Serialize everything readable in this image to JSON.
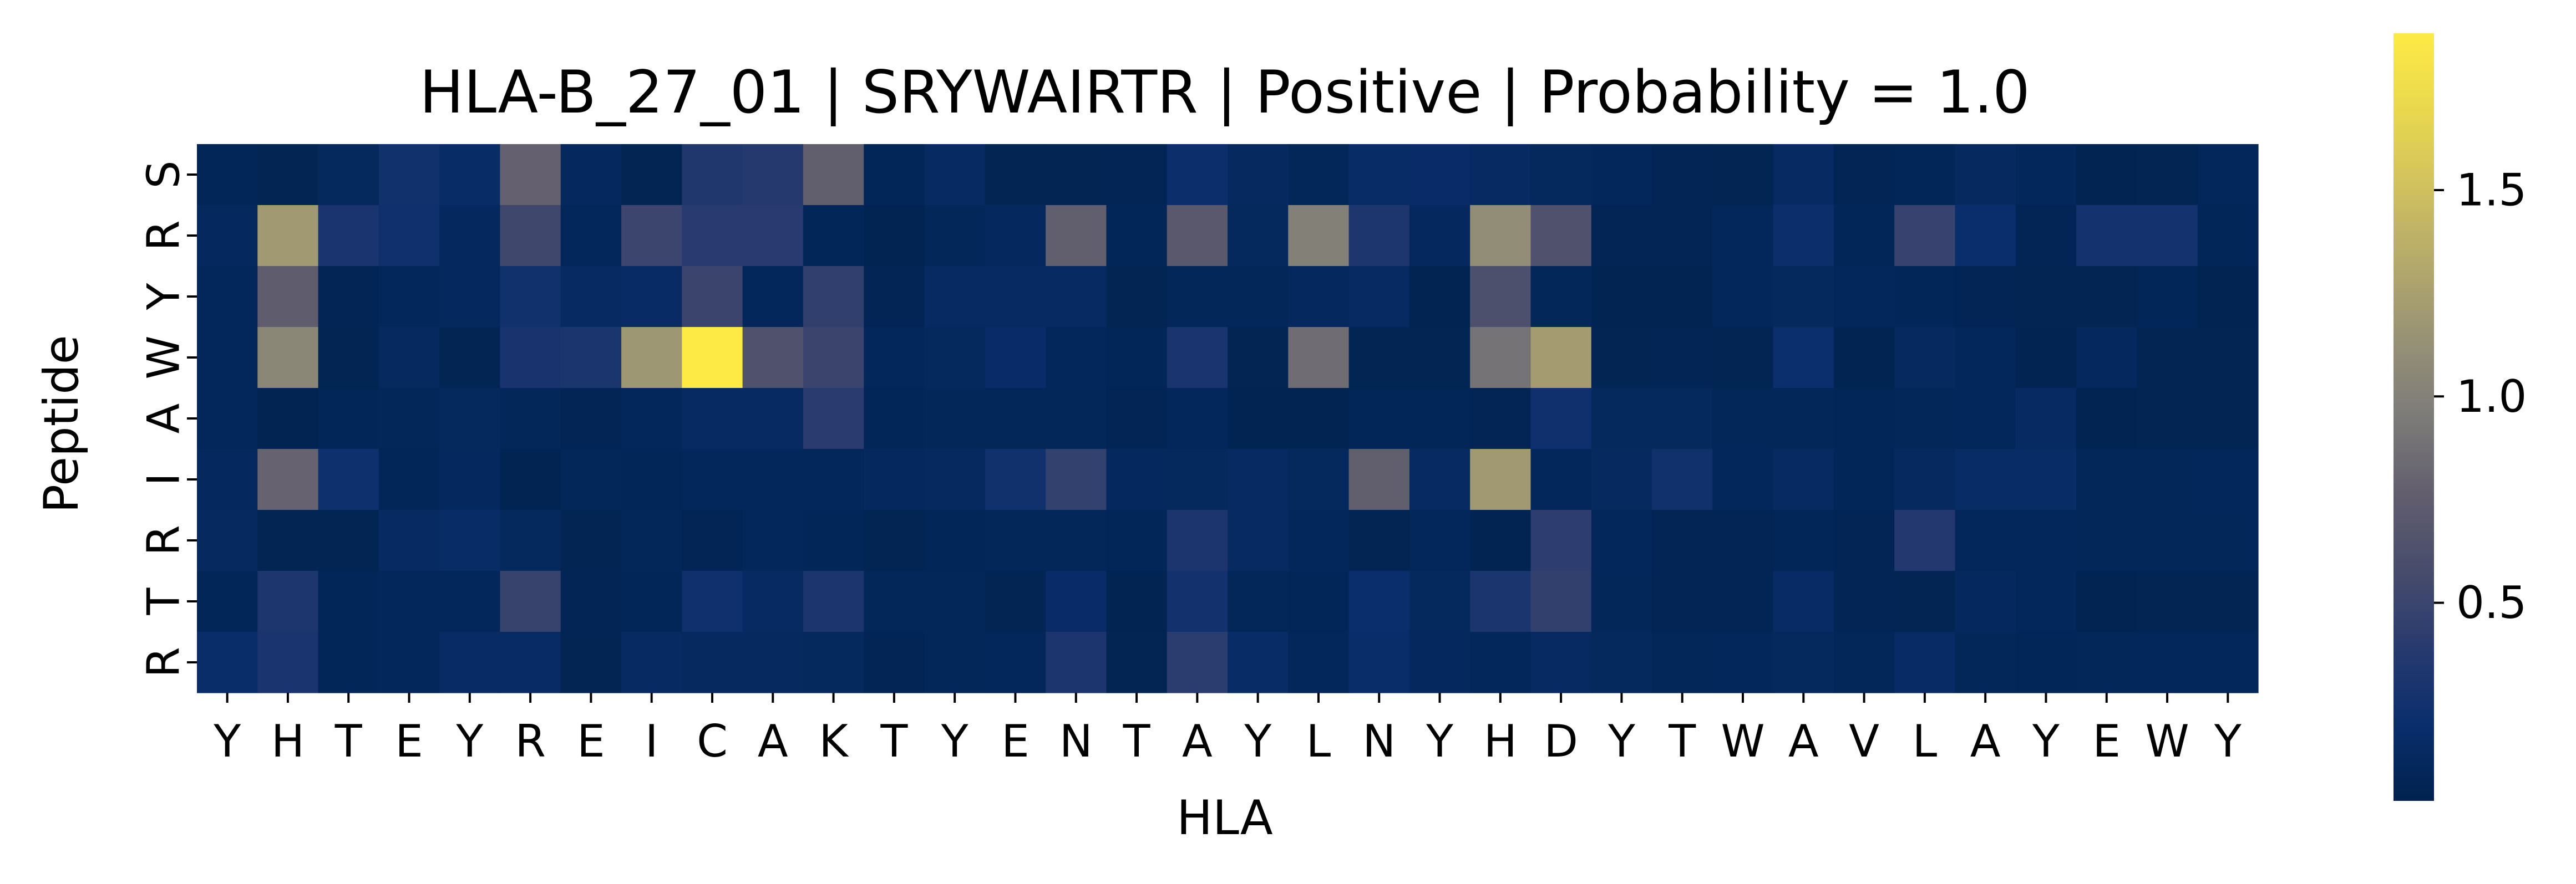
{
  "chart_data": {
    "type": "heatmap",
    "title": "HLA-B_27_01 | SRYWAIRTR | Positive | Probability = 1.0",
    "xlabel": "HLA",
    "ylabel": "Peptide",
    "x_categories": [
      "Y",
      "H",
      "T",
      "E",
      "Y",
      "R",
      "E",
      "I",
      "C",
      "A",
      "K",
      "T",
      "Y",
      "E",
      "N",
      "T",
      "A",
      "Y",
      "L",
      "N",
      "Y",
      "H",
      "D",
      "Y",
      "T",
      "W",
      "A",
      "V",
      "L",
      "A",
      "Y",
      "E",
      "W",
      "Y"
    ],
    "y_categories": [
      "S",
      "R",
      "Y",
      "W",
      "A",
      "I",
      "R",
      "T",
      "R"
    ],
    "colormap": "cividis",
    "colorbar": {
      "range": [
        0.02,
        1.88
      ],
      "ticks": [
        0.5,
        1.0,
        1.5
      ],
      "tick_labels": [
        "0.5",
        "1.0",
        "1.5"
      ]
    },
    "values": [
      [
        0.08,
        0.06,
        0.11,
        0.25,
        0.17,
        0.78,
        0.12,
        0.06,
        0.34,
        0.38,
        0.76,
        0.08,
        0.14,
        0.06,
        0.06,
        0.07,
        0.22,
        0.13,
        0.09,
        0.17,
        0.18,
        0.14,
        0.11,
        0.1,
        0.07,
        0.06,
        0.15,
        0.07,
        0.08,
        0.13,
        0.1,
        0.05,
        0.06,
        0.1
      ],
      [
        0.12,
        1.2,
        0.3,
        0.24,
        0.12,
        0.53,
        0.1,
        0.51,
        0.39,
        0.39,
        0.08,
        0.05,
        0.09,
        0.12,
        0.76,
        0.08,
        0.7,
        0.11,
        1.0,
        0.33,
        0.12,
        1.1,
        0.63,
        0.07,
        0.07,
        0.1,
        0.22,
        0.08,
        0.48,
        0.2,
        0.07,
        0.27,
        0.27,
        0.08
      ],
      [
        0.1,
        0.74,
        0.07,
        0.1,
        0.12,
        0.25,
        0.14,
        0.16,
        0.5,
        0.1,
        0.44,
        0.07,
        0.14,
        0.14,
        0.15,
        0.06,
        0.09,
        0.09,
        0.12,
        0.14,
        0.05,
        0.62,
        0.09,
        0.05,
        0.05,
        0.1,
        0.11,
        0.1,
        0.08,
        0.07,
        0.06,
        0.06,
        0.08,
        0.05
      ],
      [
        0.1,
        1.05,
        0.06,
        0.13,
        0.06,
        0.29,
        0.31,
        1.18,
        1.88,
        0.63,
        0.5,
        0.1,
        0.11,
        0.18,
        0.1,
        0.08,
        0.3,
        0.06,
        0.86,
        0.06,
        0.06,
        0.9,
        1.22,
        0.06,
        0.07,
        0.06,
        0.21,
        0.05,
        0.13,
        0.1,
        0.05,
        0.12,
        0.06,
        0.06
      ],
      [
        0.1,
        0.05,
        0.08,
        0.09,
        0.11,
        0.09,
        0.07,
        0.1,
        0.14,
        0.14,
        0.4,
        0.08,
        0.09,
        0.09,
        0.09,
        0.07,
        0.1,
        0.05,
        0.05,
        0.08,
        0.08,
        0.07,
        0.24,
        0.11,
        0.11,
        0.09,
        0.09,
        0.08,
        0.09,
        0.1,
        0.14,
        0.05,
        0.06,
        0.06
      ],
      [
        0.12,
        0.79,
        0.23,
        0.08,
        0.12,
        0.05,
        0.09,
        0.08,
        0.1,
        0.1,
        0.1,
        0.12,
        0.13,
        0.25,
        0.46,
        0.12,
        0.11,
        0.14,
        0.11,
        0.76,
        0.14,
        1.2,
        0.1,
        0.13,
        0.25,
        0.1,
        0.15,
        0.08,
        0.13,
        0.17,
        0.17,
        0.09,
        0.09,
        0.1
      ],
      [
        0.13,
        0.06,
        0.06,
        0.14,
        0.17,
        0.11,
        0.06,
        0.09,
        0.07,
        0.1,
        0.08,
        0.06,
        0.08,
        0.09,
        0.09,
        0.08,
        0.32,
        0.15,
        0.1,
        0.06,
        0.1,
        0.05,
        0.42,
        0.1,
        0.07,
        0.07,
        0.08,
        0.07,
        0.36,
        0.1,
        0.1,
        0.09,
        0.09,
        0.09
      ],
      [
        0.08,
        0.33,
        0.08,
        0.1,
        0.1,
        0.49,
        0.07,
        0.08,
        0.24,
        0.14,
        0.32,
        0.09,
        0.09,
        0.06,
        0.18,
        0.05,
        0.26,
        0.09,
        0.08,
        0.2,
        0.11,
        0.31,
        0.45,
        0.09,
        0.07,
        0.07,
        0.16,
        0.07,
        0.06,
        0.12,
        0.1,
        0.05,
        0.06,
        0.06
      ],
      [
        0.19,
        0.3,
        0.08,
        0.1,
        0.16,
        0.16,
        0.06,
        0.14,
        0.13,
        0.13,
        0.11,
        0.07,
        0.09,
        0.1,
        0.32,
        0.06,
        0.41,
        0.17,
        0.1,
        0.19,
        0.12,
        0.1,
        0.14,
        0.11,
        0.09,
        0.1,
        0.11,
        0.09,
        0.16,
        0.09,
        0.08,
        0.09,
        0.1,
        0.1
      ]
    ]
  }
}
